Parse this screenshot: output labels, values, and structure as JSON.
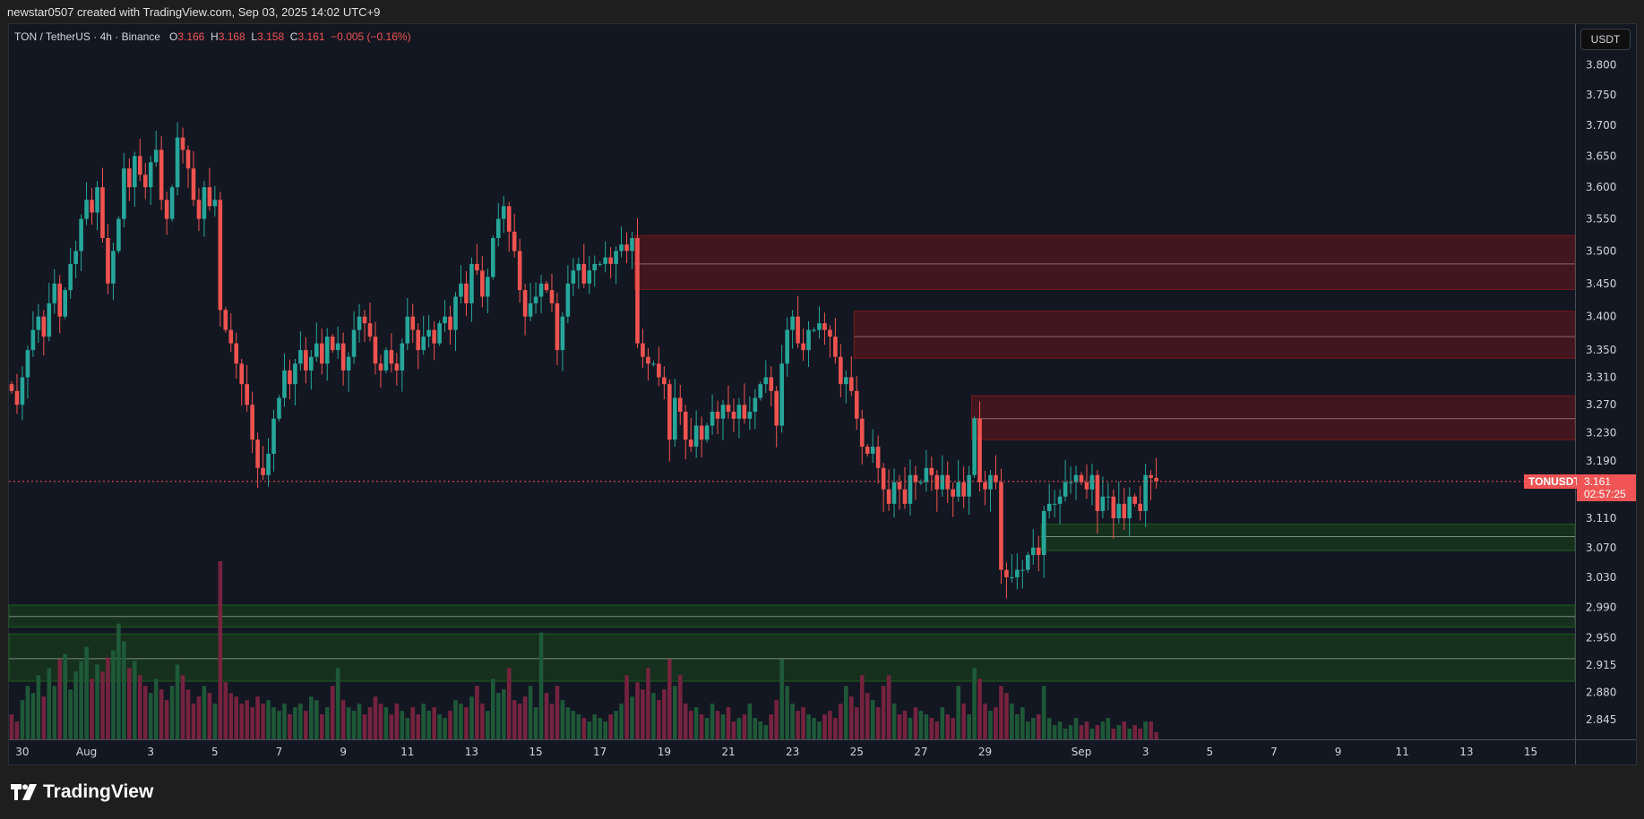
{
  "header": {
    "attribution": "newstar0507 created with TradingView.com, Sep 03, 2025 14:02 UTC+9"
  },
  "legend": {
    "symbol": "TON / TetherUS · 4h · Binance",
    "o_label": "O",
    "o": "3.166",
    "h_label": "H",
    "h": "3.168",
    "l_label": "L",
    "l": "3.158",
    "c_label": "C",
    "c": "3.161",
    "change": "−0.005 (−0.16%)"
  },
  "price_axis": {
    "unit": "USDT",
    "labels": [
      "3.800",
      "3.750",
      "3.700",
      "3.650",
      "3.600",
      "3.550",
      "3.500",
      "3.450",
      "3.400",
      "3.350",
      "3.310",
      "3.270",
      "3.230",
      "3.190",
      "3.110",
      "3.070",
      "3.030",
      "2.990",
      "2.950",
      "2.915",
      "2.880",
      "2.845"
    ]
  },
  "last_price": {
    "symbol": "TONUSDT",
    "price": "3.161",
    "countdown": "02:57:25",
    "color": "#f05454"
  },
  "branding": {
    "logo_text": "TradingView"
  },
  "colors": {
    "up": "#26a69a",
    "down": "#ef5350",
    "background": "#131722"
  },
  "chart_data": {
    "type": "candlestick",
    "interval": "4h",
    "symbol": "TONUSDT",
    "scale": "log",
    "ylim": [
      2.82,
      3.82
    ],
    "candle_index_of_aug_1": 14,
    "time_labels": [
      {
        "label": "30",
        "day": -2
      },
      {
        "label": "Aug",
        "day": 0
      },
      {
        "label": "3",
        "day": 2
      },
      {
        "label": "5",
        "day": 4
      },
      {
        "label": "7",
        "day": 6
      },
      {
        "label": "9",
        "day": 8
      },
      {
        "label": "11",
        "day": 10
      },
      {
        "label": "13",
        "day": 12
      },
      {
        "label": "15",
        "day": 14
      },
      {
        "label": "17",
        "day": 16
      },
      {
        "label": "19",
        "day": 18
      },
      {
        "label": "21",
        "day": 20
      },
      {
        "label": "23",
        "day": 22
      },
      {
        "label": "25",
        "day": 24
      },
      {
        "label": "27",
        "day": 26
      },
      {
        "label": "29",
        "day": 28
      },
      {
        "label": "Sep",
        "day": 31
      },
      {
        "label": "3",
        "day": 33
      },
      {
        "label": "5",
        "day": 35
      },
      {
        "label": "7",
        "day": 37
      },
      {
        "label": "9",
        "day": 39
      },
      {
        "label": "11",
        "day": 41
      },
      {
        "label": "13",
        "day": 43
      },
      {
        "label": "15",
        "day": 45
      }
    ],
    "close": [
      3.29,
      3.27,
      3.31,
      3.35,
      3.38,
      3.4,
      3.37,
      3.42,
      3.45,
      3.4,
      3.44,
      3.48,
      3.5,
      3.55,
      3.58,
      3.56,
      3.6,
      3.52,
      3.45,
      3.5,
      3.55,
      3.63,
      3.6,
      3.65,
      3.62,
      3.6,
      3.64,
      3.66,
      3.58,
      3.55,
      3.6,
      3.68,
      3.66,
      3.63,
      3.58,
      3.55,
      3.6,
      3.57,
      3.58,
      3.41,
      3.38,
      3.36,
      3.33,
      3.3,
      3.27,
      3.22,
      3.18,
      3.17,
      3.2,
      3.25,
      3.28,
      3.32,
      3.3,
      3.33,
      3.35,
      3.32,
      3.34,
      3.36,
      3.33,
      3.37,
      3.35,
      3.36,
      3.32,
      3.34,
      3.38,
      3.4,
      3.39,
      3.37,
      3.33,
      3.32,
      3.35,
      3.33,
      3.32,
      3.36,
      3.4,
      3.38,
      3.35,
      3.37,
      3.38,
      3.36,
      3.39,
      3.4,
      3.38,
      3.43,
      3.45,
      3.42,
      3.48,
      3.47,
      3.43,
      3.46,
      3.52,
      3.55,
      3.57,
      3.53,
      3.5,
      3.44,
      3.4,
      3.42,
      3.43,
      3.45,
      3.44,
      3.42,
      3.35,
      3.4,
      3.45,
      3.47,
      3.48,
      3.45,
      3.47,
      3.48,
      3.48,
      3.49,
      3.48,
      3.5,
      3.51,
      3.5,
      3.52,
      3.36,
      3.34,
      3.33,
      3.33,
      3.31,
      3.3,
      3.22,
      3.28,
      3.26,
      3.22,
      3.21,
      3.24,
      3.22,
      3.24,
      3.26,
      3.25,
      3.27,
      3.26,
      3.25,
      3.27,
      3.25,
      3.26,
      3.28,
      3.3,
      3.31,
      3.29,
      3.24,
      3.33,
      3.38,
      3.4,
      3.36,
      3.35,
      3.38,
      3.38,
      3.39,
      3.38,
      3.37,
      3.34,
      3.3,
      3.31,
      3.29,
      3.25,
      3.21,
      3.2,
      3.21,
      3.18,
      3.15,
      3.13,
      3.16,
      3.15,
      3.13,
      3.17,
      3.16,
      3.16,
      3.18,
      3.17,
      3.15,
      3.17,
      3.15,
      3.14,
      3.16,
      3.14,
      3.17,
      3.25,
      3.16,
      3.15,
      3.17,
      3.16,
      3.04,
      3.03,
      3.03,
      3.04,
      3.04,
      3.06,
      3.07,
      3.06,
      3.12,
      3.13,
      3.13,
      3.14,
      3.16,
      3.16,
      3.17,
      3.16,
      3.15,
      3.17,
      3.12,
      3.14,
      3.14,
      3.11,
      3.13,
      3.11,
      3.14,
      3.13,
      3.12,
      3.17,
      3.166,
      3.161
    ],
    "volume_relative": [
      14,
      10,
      22,
      30,
      26,
      36,
      24,
      40,
      30,
      45,
      48,
      28,
      38,
      44,
      52,
      34,
      42,
      38,
      46,
      50,
      65,
      55,
      40,
      44,
      36,
      30,
      26,
      34,
      28,
      22,
      30,
      42,
      36,
      28,
      20,
      24,
      30,
      26,
      20,
      100,
      32,
      26,
      24,
      20,
      22,
      18,
      24,
      20,
      22,
      18,
      16,
      20,
      14,
      18,
      20,
      16,
      24,
      22,
      14,
      18,
      30,
      40,
      22,
      18,
      16,
      20,
      14,
      18,
      24,
      20,
      18,
      14,
      20,
      16,
      12,
      18,
      14,
      20,
      16,
      18,
      14,
      12,
      16,
      22,
      20,
      18,
      24,
      30,
      20,
      16,
      34,
      26,
      28,
      40,
      22,
      20,
      24,
      30,
      18,
      60,
      26,
      20,
      30,
      22,
      18,
      16,
      14,
      12,
      10,
      14,
      12,
      10,
      14,
      16,
      20,
      36,
      24,
      32,
      28,
      40,
      26,
      22,
      28,
      45,
      30,
      36,
      20,
      16,
      18,
      14,
      12,
      20,
      16,
      14,
      18,
      10,
      12,
      14,
      20,
      12,
      10,
      8,
      14,
      22,
      45,
      30,
      20,
      16,
      18,
      14,
      12,
      10,
      14,
      16,
      12,
      20,
      30,
      24,
      18,
      36,
      26,
      22,
      18,
      30,
      36,
      20,
      14,
      16,
      12,
      18,
      16,
      14,
      12,
      10,
      18,
      14,
      12,
      30,
      20,
      14,
      40,
      34,
      20,
      16,
      18,
      30,
      26,
      20,
      14,
      18,
      10,
      12,
      14,
      30,
      12,
      8,
      10,
      6,
      8,
      12,
      8,
      10,
      6,
      8,
      10,
      12,
      6,
      8,
      10,
      6,
      8,
      6,
      10,
      10,
      4
    ],
    "zones": [
      {
        "type": "supply",
        "start_index": 117,
        "top": 3.524,
        "mid": 3.48,
        "bottom": 3.441
      },
      {
        "type": "supply",
        "start_index": 158,
        "top": 3.408,
        "mid": 3.37,
        "bottom": 3.338
      },
      {
        "type": "supply",
        "start_index": 180,
        "top": 3.283,
        "mid": 3.25,
        "bottom": 3.22
      },
      {
        "type": "demand",
        "start_index": 193,
        "top": 3.102,
        "mid": 3.085,
        "bottom": 3.066
      },
      {
        "type": "demand",
        "start_index": -3,
        "top": 2.993,
        "mid": 2.978,
        "bottom": 2.964
      },
      {
        "type": "demand",
        "start_index": -3,
        "top": 2.955,
        "mid": 2.923,
        "bottom": 2.894
      }
    ]
  }
}
